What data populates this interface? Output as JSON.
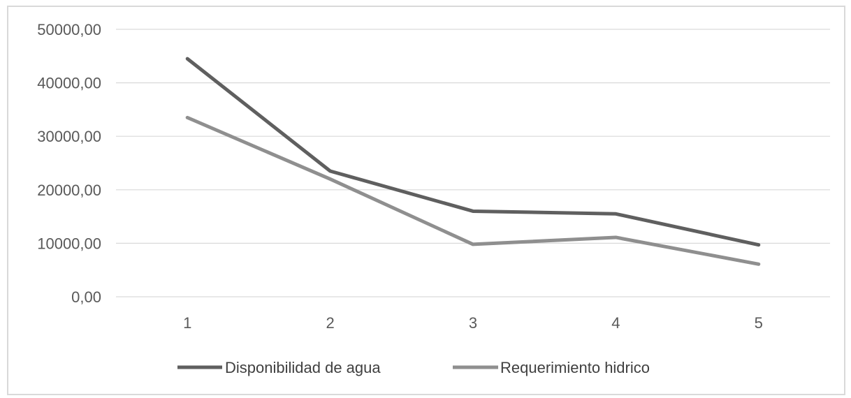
{
  "chart_data": {
    "type": "line",
    "title": "",
    "xlabel": "",
    "ylabel": "",
    "categories": [
      "1",
      "2",
      "3",
      "4",
      "5"
    ],
    "ylim": [
      0,
      50000
    ],
    "y_ticks": [
      0,
      10000,
      20000,
      30000,
      40000,
      50000
    ],
    "y_tick_labels": [
      "0,00",
      "10000,00",
      "20000,00",
      "30000,00",
      "40000,00",
      "50000,00"
    ],
    "grid": true,
    "legend_position": "bottom",
    "series": [
      {
        "name": "Disponibilidad de agua",
        "color": "#5f5f5f",
        "values": [
          44500,
          23500,
          16000,
          15500,
          9700
        ]
      },
      {
        "name": "Requerimiento hidrico",
        "color": "#8f8f8f",
        "values": [
          33500,
          22000,
          9800,
          11100,
          6100
        ]
      }
    ]
  }
}
